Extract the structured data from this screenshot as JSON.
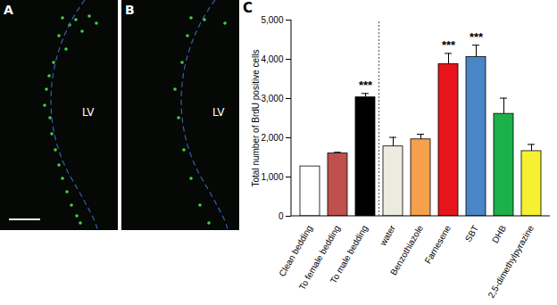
{
  "panels": [
    {
      "label": "A",
      "region_label": "LV"
    },
    {
      "label": "B",
      "region_label": "LV"
    }
  ],
  "chart_data": {
    "type": "bar",
    "panel_label": "C",
    "y_label": "Total number of BrdU positive cells",
    "categories": [
      "Clean bedding",
      "To female bedding",
      "To male bedding",
      "water",
      "Benzothiazole",
      "Farnesene",
      "SBT",
      "DHB",
      "2,5-dimethylpyrazine"
    ],
    "values": [
      1270,
      1600,
      3030,
      1780,
      1960,
      3880,
      4060,
      2610,
      1660
    ],
    "errors": [
      null,
      30,
      100,
      230,
      130,
      270,
      300,
      400,
      170
    ],
    "colors": [
      "#ffffff",
      "#c0504d",
      "#000000",
      "#ecebe0",
      "#f5a04a",
      "#e8141c",
      "#4a86c5",
      "#1bb04a",
      "#f5f032"
    ],
    "annotations": [
      {
        "category": "To male bedding",
        "text": "***"
      },
      {
        "category": "Farnesene",
        "text": "***"
      },
      {
        "category": "SBT",
        "text": "***"
      }
    ],
    "ylim": [
      0,
      5000
    ],
    "yticks": [
      0,
      1000,
      2000,
      3000,
      4000,
      5000
    ]
  }
}
